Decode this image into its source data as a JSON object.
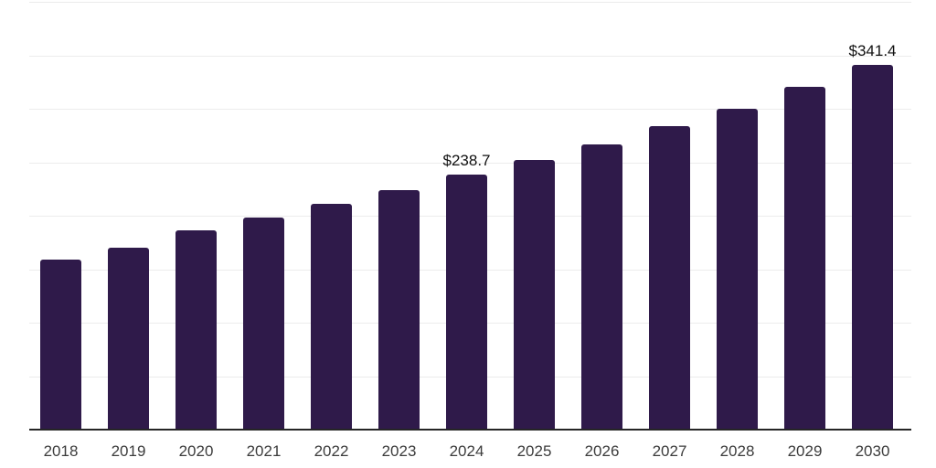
{
  "chart_data": {
    "type": "bar",
    "title": "",
    "xlabel": "",
    "ylabel": "",
    "categories": [
      "2018",
      "2019",
      "2020",
      "2021",
      "2022",
      "2023",
      "2024",
      "2025",
      "2026",
      "2027",
      "2028",
      "2029",
      "2030"
    ],
    "values": [
      159.0,
      170.0,
      186.0,
      198.0,
      210.7,
      224.3,
      238.7,
      252.3,
      266.8,
      283.8,
      299.9,
      320.3,
      341.4
    ],
    "data_labels": [
      "",
      "",
      "",
      "",
      "",
      "",
      "$238.7",
      "",
      "",
      "",
      "",
      "",
      "$341.4"
    ],
    "ylim": [
      0,
      400
    ],
    "gridline_step": 50,
    "grid": true,
    "legend": false,
    "y_tick_labels_visible": false,
    "colors": {
      "bar": "#2f1a4a",
      "axis_line": "#262626",
      "gridline": "#ececec",
      "data_label": "#111111",
      "tick_label": "#3c3c3c",
      "background": "#ffffff"
    }
  }
}
